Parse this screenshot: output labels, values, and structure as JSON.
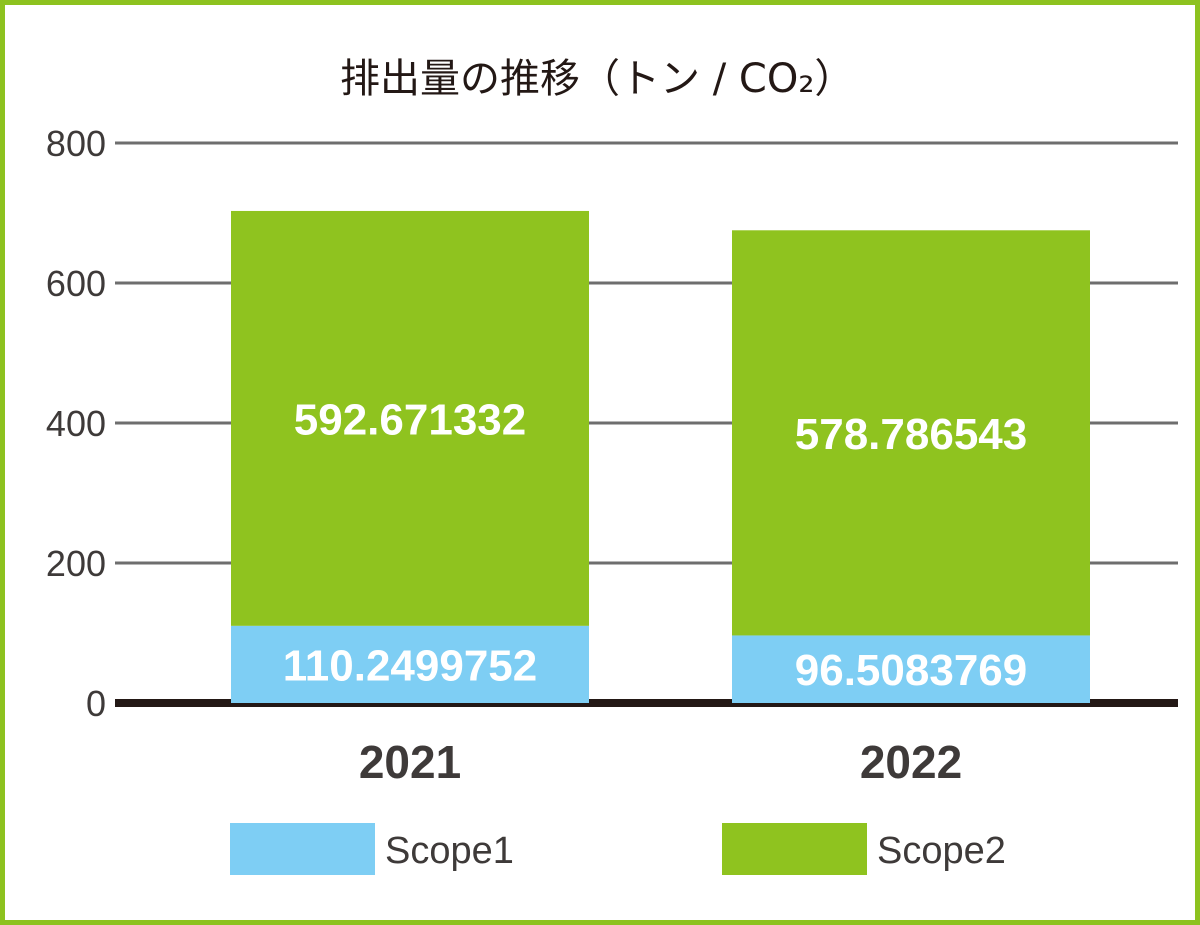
{
  "chart_data": {
    "type": "bar",
    "stacked": true,
    "title": "排出量の推移（トン / CO₂）",
    "categories": [
      "2021",
      "2022"
    ],
    "series": [
      {
        "name": "Scope1",
        "values": [
          110.2499752,
          96.5083769
        ],
        "labels": [
          "110.2499752",
          "96.5083769"
        ],
        "color": "#7ecef4"
      },
      {
        "name": "Scope2",
        "values": [
          592.671332,
          578.786543
        ],
        "labels": [
          "592.671332",
          "578.786543"
        ],
        "color": "#8fc31f"
      }
    ],
    "ylim": [
      0,
      800
    ],
    "yticks": [
      0,
      200,
      400,
      600,
      800
    ],
    "ytick_labels": [
      "0",
      "200",
      "400",
      "600",
      "800"
    ],
    "grid": true,
    "legend_position": "bottom",
    "frame_color": "#8dc21f"
  }
}
